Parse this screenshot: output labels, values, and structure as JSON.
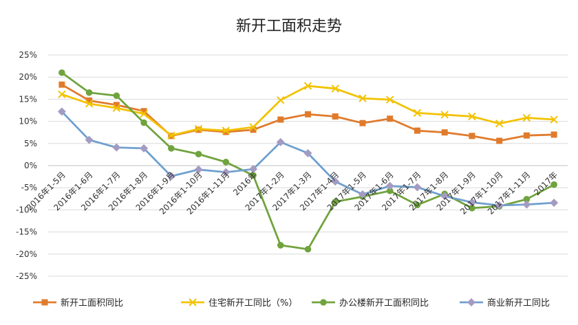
{
  "chart_data": {
    "type": "line",
    "title": "新开工面积走势",
    "categories": [
      "2016年1-5月",
      "2016年1-6月",
      "2016年1-7月",
      "2016年1-8月",
      "2016年1-9月",
      "2016年1-10月",
      "2016年1-11月",
      "2016年",
      "2017年1-2月",
      "2017年1-3月",
      "2017年1-4月",
      "2017年1-5月",
      "2017年1-6月",
      "2017年1-7月",
      "2017年1-8月",
      "2017年1-9月",
      "2017年1-10月",
      "2017年1-11月",
      "2017年"
    ],
    "y_ticks": [
      "-25%",
      "-20%",
      "-15%",
      "-10%",
      "-5%",
      "0%",
      "5%",
      "10%",
      "15%",
      "20%",
      "25%"
    ],
    "ylim": [
      -25,
      25
    ],
    "legend_position": "bottom",
    "series": [
      {
        "name": "新开工面积同比",
        "color": "#E07B2C",
        "marker": "square",
        "values": [
          18.3,
          14.7,
          13.7,
          12.3,
          6.7,
          8.1,
          7.6,
          8.1,
          10.4,
          11.6,
          11.1,
          9.6,
          10.6,
          7.9,
          7.5,
          6.7,
          5.6,
          6.8,
          7.0
        ]
      },
      {
        "name": "住宅新开工同比（%）",
        "color": "#F2C200",
        "marker": "x",
        "values": [
          16.1,
          14.0,
          13.0,
          11.7,
          6.8,
          8.3,
          7.9,
          8.7,
          14.8,
          18.0,
          17.4,
          15.2,
          14.9,
          11.9,
          11.5,
          11.1,
          9.5,
          10.8,
          10.4
        ]
      },
      {
        "name": "办公楼新开工面积同比",
        "color": "#70A33E",
        "marker": "circle",
        "values": [
          21.0,
          16.5,
          15.8,
          9.7,
          3.9,
          2.6,
          0.8,
          -2.2,
          -18.0,
          -18.9,
          -8.2,
          -7.0,
          -5.7,
          -8.9,
          -6.4,
          -9.6,
          -9.2,
          -7.6,
          -4.3
        ]
      },
      {
        "name": "商业新开工同比",
        "color": "#6FA0CE",
        "marker": "diamond",
        "values": [
          12.2,
          5.8,
          4.1,
          3.9,
          -2.4,
          -0.9,
          -1.5,
          -0.8,
          5.3,
          2.8,
          -3.6,
          -6.5,
          -4.6,
          -4.9,
          -6.9,
          -8.3,
          -9.0,
          -8.8,
          -8.4
        ]
      }
    ]
  }
}
